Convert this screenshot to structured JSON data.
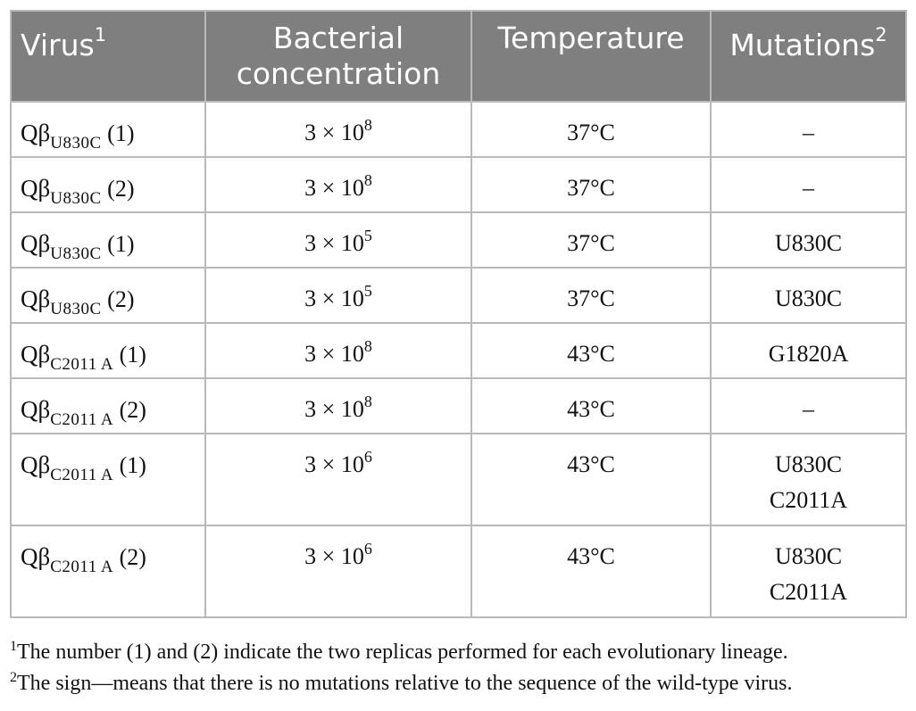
{
  "table": {
    "headers": [
      {
        "label": "Virus",
        "sup": "1"
      },
      {
        "label": "Bacterial concentration",
        "sup": ""
      },
      {
        "label": "Temperature",
        "sup": ""
      },
      {
        "label": "Mutations",
        "sup": "2"
      }
    ],
    "rows": [
      {
        "virus": {
          "base": "Qβ",
          "sub": "U830C",
          "rep": " (1)"
        },
        "conc": {
          "base": "3 × 10",
          "exp": "8"
        },
        "temp": "37°C",
        "mutations": [
          "–"
        ]
      },
      {
        "virus": {
          "base": "Qβ",
          "sub": "U830C",
          "rep": " (2)"
        },
        "conc": {
          "base": "3 × 10",
          "exp": "8"
        },
        "temp": "37°C",
        "mutations": [
          "–"
        ]
      },
      {
        "virus": {
          "base": "Qβ",
          "sub": "U830C",
          "rep": " (1)"
        },
        "conc": {
          "base": "3 × 10",
          "exp": "5"
        },
        "temp": "37°C",
        "mutations": [
          "U830C"
        ]
      },
      {
        "virus": {
          "base": "Qβ",
          "sub": "U830C",
          "rep": " (2)"
        },
        "conc": {
          "base": "3 × 10",
          "exp": "5"
        },
        "temp": "37°C",
        "mutations": [
          "U830C"
        ]
      },
      {
        "virus": {
          "base": "Qβ",
          "sub": "C2011 A",
          "rep": " (1)"
        },
        "conc": {
          "base": "3 × 10",
          "exp": "8"
        },
        "temp": "43°C",
        "mutations": [
          "G1820A"
        ]
      },
      {
        "virus": {
          "base": "Qβ",
          "sub": "C2011 A",
          "rep": " (2)"
        },
        "conc": {
          "base": "3 × 10",
          "exp": "8"
        },
        "temp": "43°C",
        "mutations": [
          "–"
        ]
      },
      {
        "virus": {
          "base": "Qβ",
          "sub": "C2011 A",
          "rep": " (1)"
        },
        "conc": {
          "base": "3 × 10",
          "exp": "6"
        },
        "temp": "43°C",
        "mutations": [
          "U830C",
          "C2011A"
        ]
      },
      {
        "virus": {
          "base": "Qβ",
          "sub": "C2011 A",
          "rep": " (2)"
        },
        "conc": {
          "base": "3 × 10",
          "exp": "6"
        },
        "temp": "43°C",
        "mutations": [
          "U830C",
          "C2011A"
        ]
      }
    ]
  },
  "footnotes": [
    {
      "mark": "1",
      "text": "The number (1) and (2) indicate the two replicas performed for each evolutionary lineage."
    },
    {
      "mark": "2",
      "text": "The sign—means that there is no mutations relative to the sequence of the wild-type virus."
    }
  ]
}
